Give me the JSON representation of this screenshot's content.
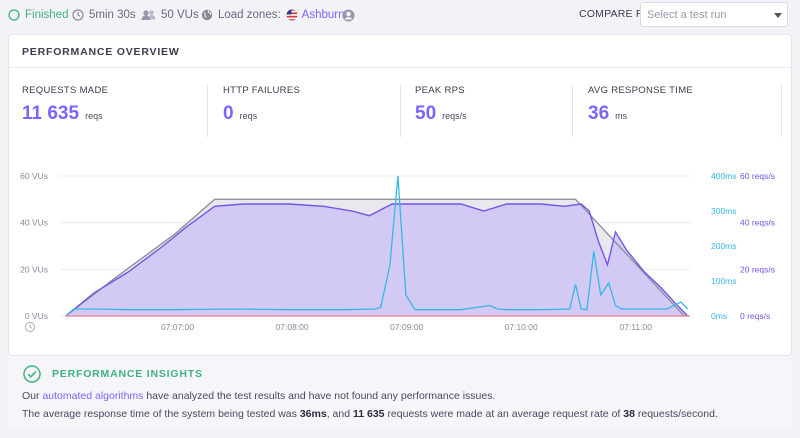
{
  "status": {
    "state": "Finished",
    "duration": "5min 30s",
    "vus": "50 VUs",
    "load_zones_label": "Load zones:",
    "zone": "Ashburn"
  },
  "compare": {
    "label": "COMPARE RESULT",
    "placeholder": "Select a test run"
  },
  "overview": {
    "title": "PERFORMANCE OVERVIEW",
    "stats": [
      {
        "label": "REQUESTS MADE",
        "value": "11 635",
        "unit": "reqs"
      },
      {
        "label": "HTTP FAILURES",
        "value": "0",
        "unit": "reqs"
      },
      {
        "label": "PEAK RPS",
        "value": "50",
        "unit": "reqs/s"
      },
      {
        "label": "AVG RESPONSE TIME",
        "value": "36",
        "unit": "ms"
      }
    ]
  },
  "chart_data": {
    "type": "line",
    "x_ticks": [
      "07:07:00",
      "07:08:00",
      "07:09:00",
      "07:10:00",
      "07:11:00"
    ],
    "y_left_ticks": [
      "60 VUs",
      "40 VUs",
      "20 VUs",
      "0 VUs"
    ],
    "y_mid_ticks": [
      "400ms",
      "300ms",
      "200ms",
      "100ms",
      "0ms"
    ],
    "y_right_ticks": [
      "60 reqs/s",
      "40 reqs/s",
      "20 reqs/s",
      "0 reqs/s"
    ],
    "colors": {
      "vus": "#8f8f9e",
      "rps": "#7356e8",
      "rps_fill": "#c9bff5",
      "response": "#36b7e8",
      "failures": "#f07a8f"
    },
    "x_minutes": [
      0.0,
      0.5,
      1.0,
      1.5,
      2.0,
      2.5,
      3.0,
      3.5,
      4.0,
      4.5,
      5.0,
      5.5
    ],
    "series": [
      {
        "key": "vus",
        "values": [
          0,
          17,
          35,
          50,
          50,
          50,
          50,
          50,
          50,
          50,
          50,
          0
        ],
        "x": [
          0.05,
          0.5,
          1.0,
          1.35,
          2.0,
          2.6,
          3.1,
          3.6,
          4.1,
          4.3,
          4.5,
          5.45
        ]
      },
      {
        "key": "rps",
        "values": [
          0,
          10,
          19,
          30,
          38,
          47,
          48,
          48,
          47,
          45,
          43,
          48,
          48,
          48,
          45,
          48,
          48,
          47,
          48,
          45,
          32,
          22,
          36,
          28,
          19,
          12,
          5,
          0
        ],
        "x": [
          0.05,
          0.3,
          0.6,
          0.9,
          1.1,
          1.35,
          1.6,
          2.0,
          2.3,
          2.55,
          2.7,
          2.9,
          3.2,
          3.5,
          3.7,
          3.9,
          4.2,
          4.4,
          4.55,
          4.62,
          4.7,
          4.78,
          4.85,
          4.95,
          5.1,
          5.25,
          5.38,
          5.48
        ]
      },
      {
        "key": "response_time_ms",
        "values": [
          0,
          20,
          20,
          18,
          18,
          20,
          18,
          18,
          20,
          25,
          145,
          400,
          60,
          18,
          18,
          18,
          30,
          20,
          18,
          18,
          20,
          90,
          20,
          18,
          185,
          60,
          95,
          30,
          20,
          20,
          20,
          40,
          20
        ],
        "x": [
          0.05,
          0.12,
          0.3,
          0.6,
          1.0,
          1.5,
          2.0,
          2.5,
          2.75,
          2.8,
          2.88,
          2.95,
          3.02,
          3.1,
          3.3,
          3.5,
          3.75,
          3.82,
          3.9,
          4.2,
          4.45,
          4.5,
          4.55,
          4.6,
          4.66,
          4.72,
          4.79,
          4.85,
          4.9,
          5.1,
          5.3,
          5.42,
          5.48
        ]
      },
      {
        "key": "http_failures",
        "values": [
          0,
          0
        ],
        "x": [
          0.05,
          5.48
        ]
      }
    ],
    "vu_range": [
      0,
      60
    ],
    "rps_range": [
      0,
      60
    ],
    "response_range_ms": [
      0,
      400
    ],
    "x_range_min": [
      0,
      5.5
    ]
  },
  "insights": {
    "title": "PERFORMANCE INSIGHTS",
    "line1_prefix": "Our",
    "line1_link": "automated algorithms",
    "line1_suffix": "have analyzed the test results and have not found any performance issues.",
    "line2_a": "The average response time of the system being tested was",
    "line2_b": "36ms",
    "line2_c": ", and",
    "line2_d": "11 635",
    "line2_e": "requests were made at an average request rate of",
    "line2_f": "38",
    "line2_g": "requests/second."
  }
}
